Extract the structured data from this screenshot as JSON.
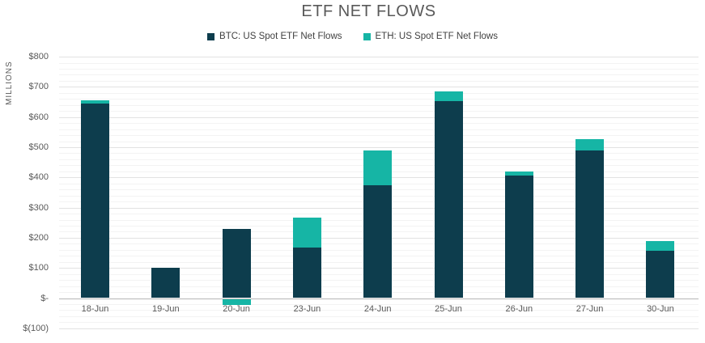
{
  "title": "ETF NET FLOWS",
  "y_axis_title": "MILLIONS",
  "legend": {
    "items": [
      {
        "label": "BTC: US Spot ETF Net Flows",
        "color": "#0d3d4d"
      },
      {
        "label": "ETH: US Spot ETF Net Flows",
        "color": "#16b5a5"
      }
    ]
  },
  "colors": {
    "btc": "#0d3d4d",
    "eth": "#16b5a5",
    "title_text": "#595959",
    "axis_text": "#595959",
    "major_gridline": "#e2e2e2",
    "minor_gridline": "#f3f3f3",
    "zero_axis_line": "#b5b5b5",
    "background": "#ffffff"
  },
  "chart_data": {
    "type": "bar",
    "stacked": true,
    "title": "ETF NET FLOWS",
    "ylabel": "MILLIONS",
    "xlabel": "",
    "units": "USD millions",
    "categories": [
      "18-Jun",
      "19-Jun",
      "20-Jun",
      "23-Jun",
      "24-Jun",
      "25-Jun",
      "26-Jun",
      "27-Jun",
      "30-Jun"
    ],
    "series": [
      {
        "name": "BTC: US Spot ETF Net Flows",
        "color": "#0d3d4d",
        "values": [
          645,
          100,
          228,
          168,
          373,
          652,
          405,
          490,
          157
        ]
      },
      {
        "name": "ETH: US Spot ETF Net Flows",
        "color": "#16b5a5",
        "values": [
          10,
          0,
          -20,
          98,
          116,
          33,
          15,
          38,
          33
        ]
      }
    ],
    "ylim": [
      -100,
      800
    ],
    "ytick_values": [
      800,
      700,
      600,
      500,
      400,
      300,
      200,
      100,
      0,
      -100
    ],
    "ytick_labels": [
      "$800",
      "$700",
      "$600",
      "$500",
      "$400",
      "$300",
      "$200",
      "$100",
      "$-",
      "$(100)"
    ],
    "minor_gridline_step": 20,
    "grid": "horizontal major and minor, on",
    "legend_position": "top"
  }
}
